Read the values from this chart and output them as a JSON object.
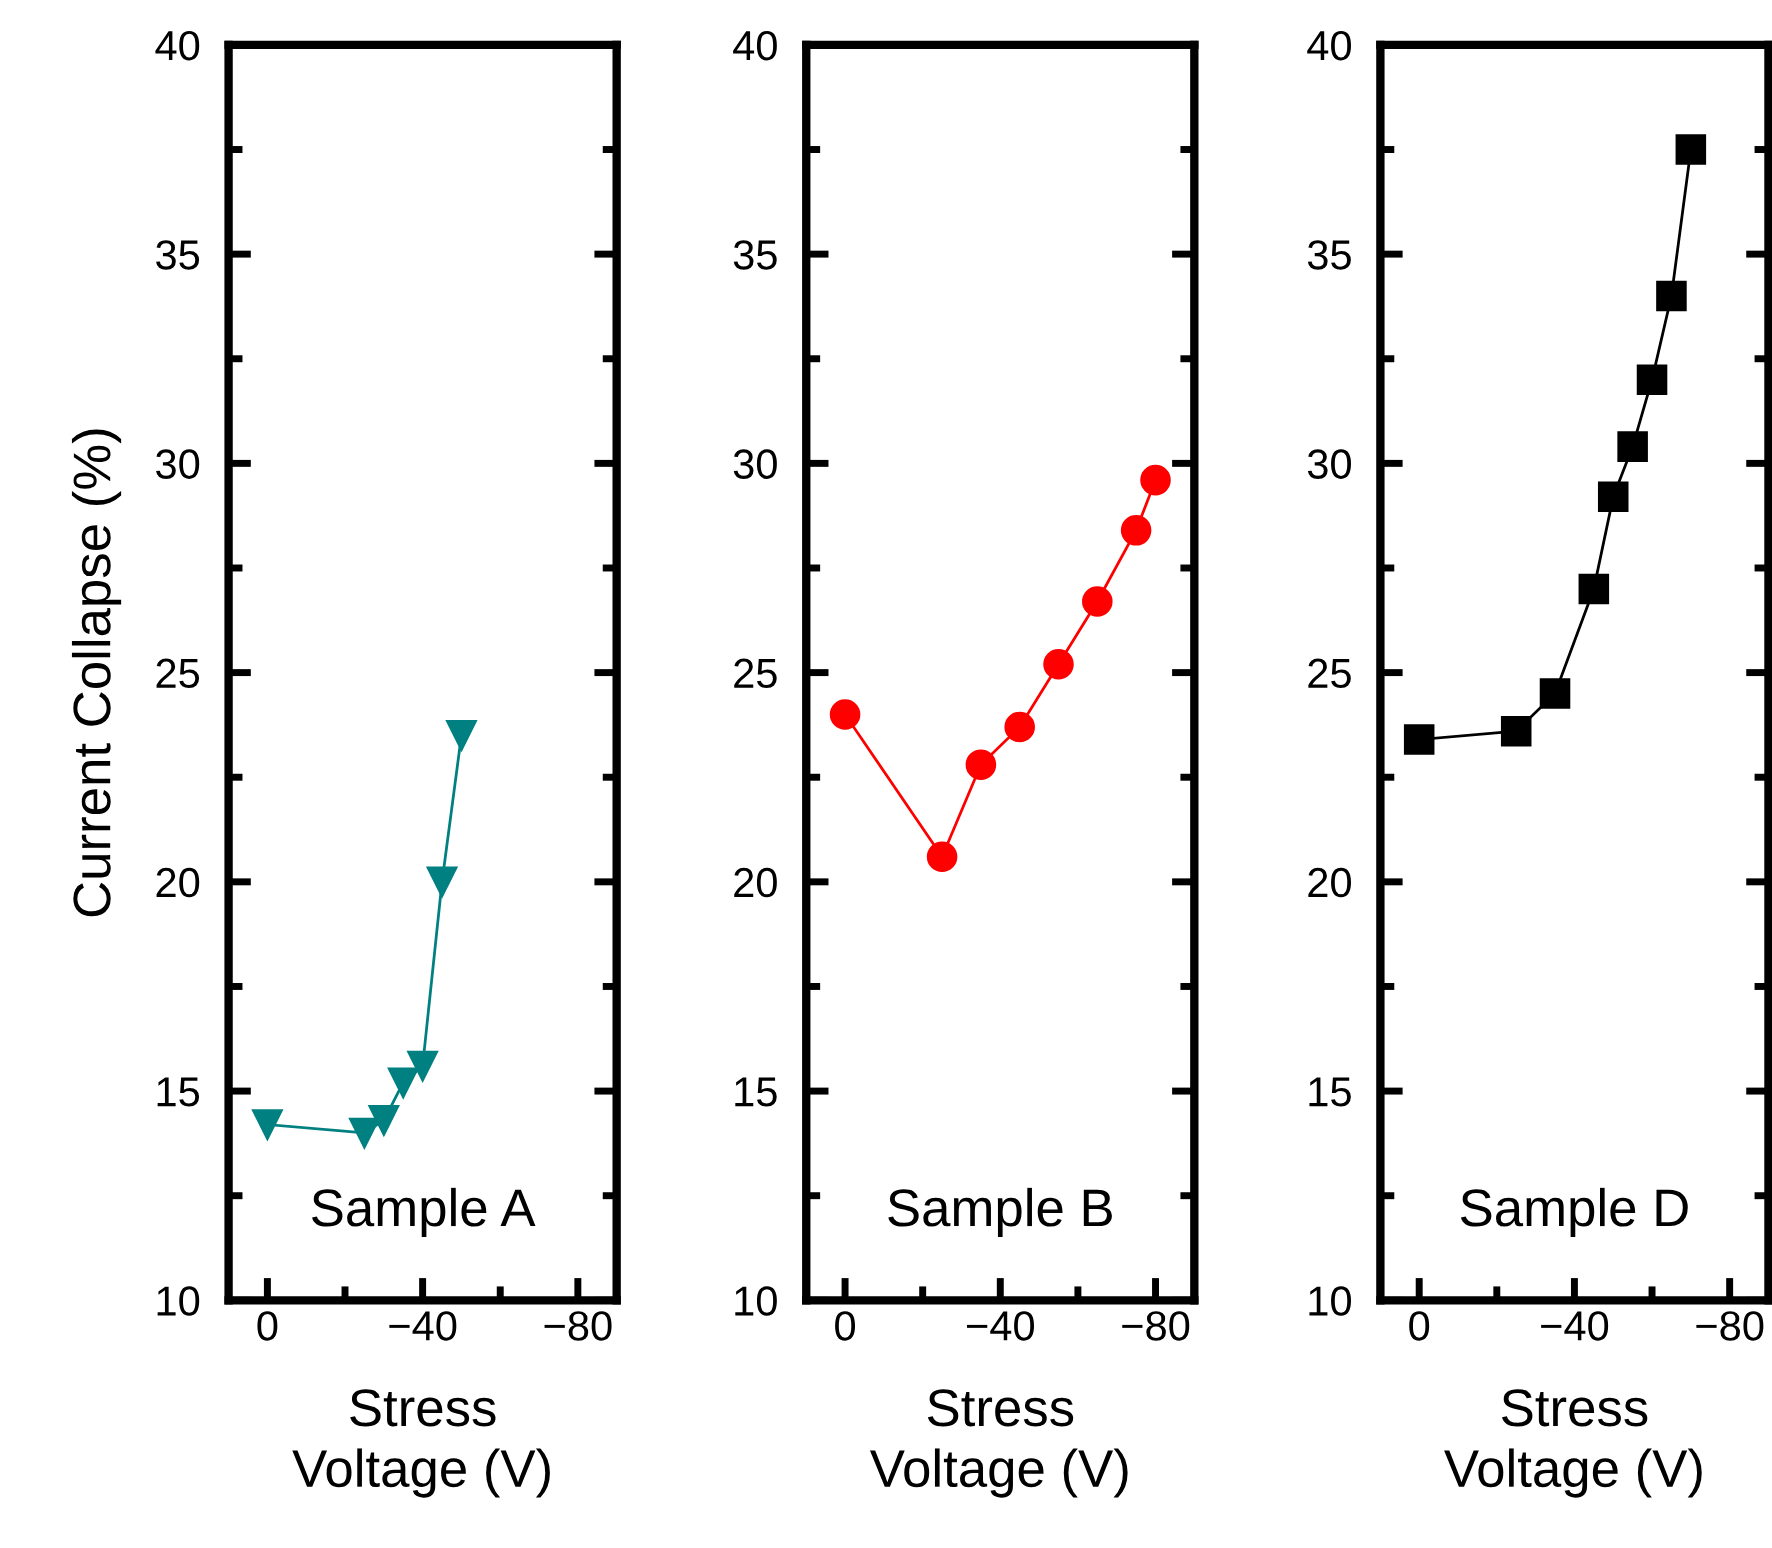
{
  "chart_data": [
    {
      "type": "line",
      "ylabel": "Current Collapse (%)",
      "xlabel": "Stress\nVoltage (V)",
      "annotations": [
        "Sample A"
      ],
      "x": [
        0,
        -25,
        -30,
        -35,
        -40,
        -45,
        -50
      ],
      "xlim": [
        10,
        -90
      ],
      "xticks": [
        0,
        -40,
        -80
      ],
      "ylim": [
        10,
        40
      ],
      "yticks": [
        10,
        15,
        20,
        25,
        30,
        35,
        40
      ],
      "marker": "triangle",
      "grid": false,
      "legend": false,
      "series": [
        {
          "color": "#008080",
          "values": [
            14.2,
            14.0,
            14.3,
            15.2,
            15.6,
            20.0,
            23.5
          ]
        }
      ]
    },
    {
      "type": "line",
      "xlabel": "Stress\nVoltage (V)",
      "annotations": [
        "Sample B"
      ],
      "x": [
        0,
        -25,
        -35,
        -45,
        -55,
        -65,
        -75,
        -80
      ],
      "xlim": [
        10,
        -90
      ],
      "xticks": [
        0,
        -40,
        -80
      ],
      "ylim": [
        10,
        40
      ],
      "yticks": [
        10,
        15,
        20,
        25,
        30,
        35,
        40
      ],
      "marker": "circle",
      "grid": false,
      "legend": false,
      "series": [
        {
          "color": "#ff0000",
          "values": [
            24.0,
            20.6,
            22.8,
            23.7,
            25.2,
            26.7,
            28.4,
            29.6
          ]
        }
      ]
    },
    {
      "type": "line",
      "xlabel": "Stress\nVoltage (V)",
      "annotations": [
        "Sample D"
      ],
      "x": [
        0,
        -25,
        -35,
        -45,
        -50,
        -55,
        -60,
        -65,
        -70
      ],
      "xlim": [
        10,
        -90
      ],
      "xticks": [
        0,
        -40,
        -80
      ],
      "ylim": [
        10,
        40
      ],
      "yticks": [
        10,
        15,
        20,
        25,
        30,
        35,
        40
      ],
      "marker": "square",
      "grid": false,
      "legend": false,
      "series": [
        {
          "color": "#000000",
          "values": [
            23.4,
            23.6,
            24.5,
            27.0,
            29.2,
            30.4,
            32.0,
            34.0,
            37.5
          ]
        }
      ]
    }
  ]
}
